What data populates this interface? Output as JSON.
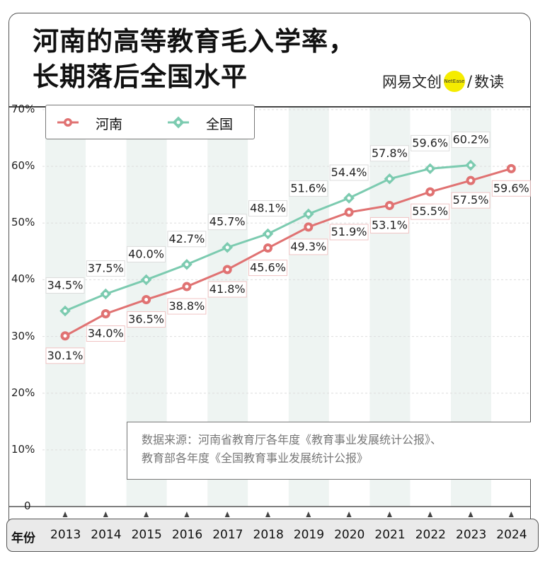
{
  "title_lines": [
    "河南的高等教育毛入学率，",
    "长期落后全国水平"
  ],
  "logo": {
    "left": "网易文创",
    "badge": "NetEase",
    "sep": "/",
    "right": "数读",
    "badge_color": "#f5ec00"
  },
  "source_lines": [
    "数据来源：河南省教育厅各年度《教育事业发展统计公报》、",
    "教育部各年度《全国教育事业发展统计公报》"
  ],
  "chart_data": {
    "type": "line",
    "xlabel": "年份",
    "categories": [
      "2013",
      "2014",
      "2015",
      "2016",
      "2017",
      "2018",
      "2019",
      "2020",
      "2021",
      "2022",
      "2023",
      "2024"
    ],
    "ylim": [
      0,
      70
    ],
    "yticks": [
      "0",
      "10%",
      "20%",
      "30%",
      "40%",
      "50%",
      "60%",
      "70%"
    ],
    "legend": "top-left",
    "grid": true,
    "series": [
      {
        "name": "河南",
        "color": "#e07272",
        "values": [
          30.1,
          34.0,
          36.5,
          38.8,
          41.8,
          45.6,
          49.3,
          51.9,
          53.1,
          55.5,
          57.5,
          59.6
        ],
        "labels": [
          "30.1%",
          "34.0%",
          "36.5%",
          "38.8%",
          "41.8%",
          "45.6%",
          "49.3%",
          "51.9%",
          "53.1%",
          "55.5%",
          "57.5%",
          "59.6%"
        ]
      },
      {
        "name": "全国",
        "color": "#7ccbb0",
        "values": [
          34.5,
          37.5,
          40.0,
          42.7,
          45.7,
          48.1,
          51.6,
          54.4,
          57.8,
          59.6,
          60.2,
          null
        ],
        "labels": [
          "34.5%",
          "37.5%",
          "40.0%",
          "42.7%",
          "45.7%",
          "48.1%",
          "51.6%",
          "54.4%",
          "57.8%",
          "59.6%",
          "60.2%",
          null
        ]
      }
    ]
  }
}
